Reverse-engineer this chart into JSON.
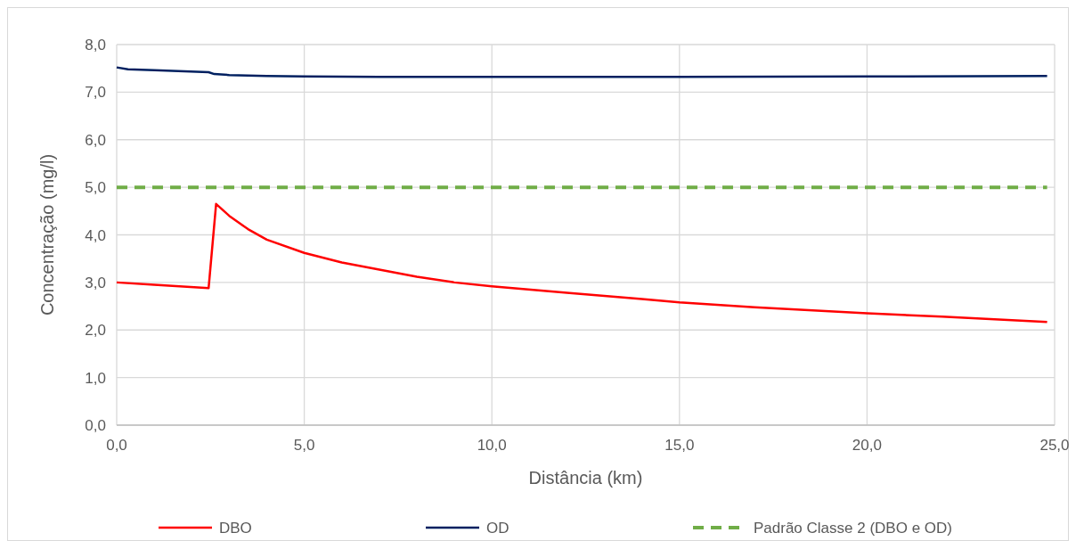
{
  "chart_data": {
    "type": "line",
    "xlabel": "Distância (km)",
    "ylabel": "Concentração (mg/l)",
    "xlim": [
      0,
      25
    ],
    "xticks": [
      {
        "value": 0,
        "label": "0,0"
      },
      {
        "value": 5,
        "label": "5,0"
      },
      {
        "value": 10,
        "label": "10,0"
      },
      {
        "value": 15,
        "label": "15,0"
      },
      {
        "value": 20,
        "label": "20,0"
      },
      {
        "value": 25,
        "label": "25,0"
      }
    ],
    "ylim": [
      0,
      8
    ],
    "yticks": [
      {
        "value": 0,
        "label": "0,0"
      },
      {
        "value": 1,
        "label": "1,0"
      },
      {
        "value": 2,
        "label": "2,0"
      },
      {
        "value": 3,
        "label": "3,0"
      },
      {
        "value": 4,
        "label": "4,0"
      },
      {
        "value": 5,
        "label": "5,0"
      },
      {
        "value": 6,
        "label": "6,0"
      },
      {
        "value": 7,
        "label": "7,0"
      },
      {
        "value": 8,
        "label": "8,0"
      }
    ],
    "grid": true,
    "legend": "bottom",
    "marker": "none",
    "series": [
      {
        "name": "DBO",
        "color": "#ff0000",
        "line_style": "solid",
        "x": [
          0,
          1,
          2.45,
          2.65,
          3,
          3.5,
          4,
          5,
          6,
          7,
          8,
          9,
          10,
          12,
          14,
          15,
          17,
          20,
          22,
          24.8
        ],
        "values": [
          3.0,
          2.95,
          2.88,
          4.65,
          4.4,
          4.12,
          3.9,
          3.62,
          3.42,
          3.27,
          3.12,
          3.0,
          2.92,
          2.78,
          2.65,
          2.58,
          2.48,
          2.35,
          2.28,
          2.17
        ]
      },
      {
        "name": "OD",
        "color": "#002060",
        "line_style": "solid",
        "x": [
          0,
          0.3,
          1,
          2.45,
          2.6,
          3,
          4,
          5,
          7,
          10,
          15,
          20,
          24.8
        ],
        "values": [
          7.52,
          7.48,
          7.46,
          7.42,
          7.38,
          7.36,
          7.34,
          7.33,
          7.32,
          7.32,
          7.32,
          7.33,
          7.34
        ]
      },
      {
        "name": "Padrão Classe 2 (DBO e OD)",
        "color": "#70ad47",
        "line_style": "dashed",
        "x": [
          0,
          24.8
        ],
        "values": [
          5,
          5
        ]
      }
    ]
  }
}
